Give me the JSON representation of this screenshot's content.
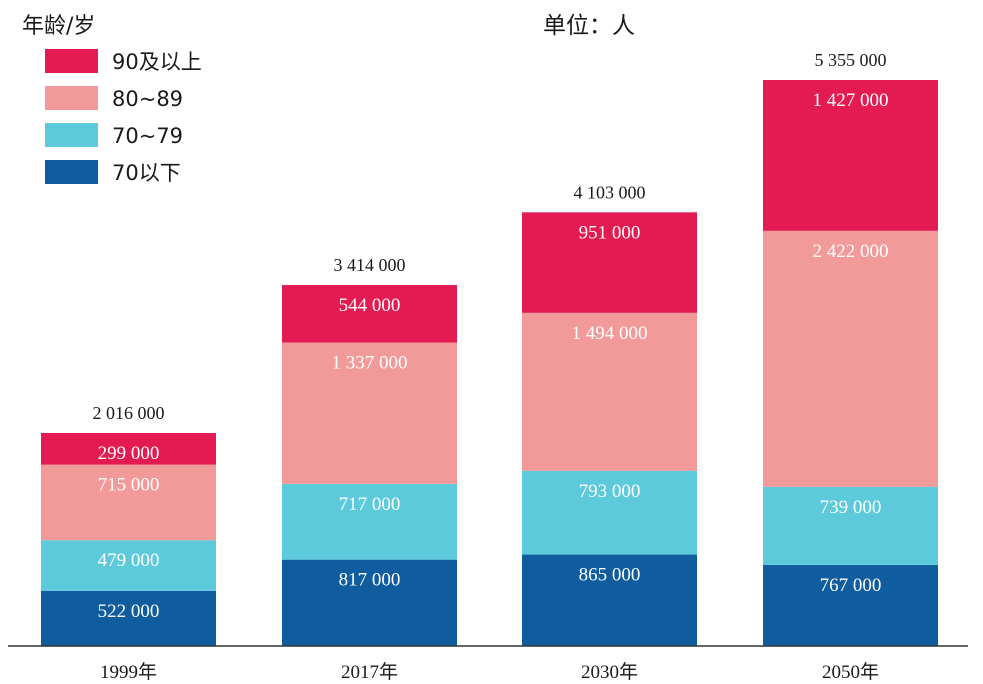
{
  "chart_data": {
    "type": "bar",
    "stacked": true,
    "ylabel": "年龄/岁",
    "unit": "单位：人",
    "categories": [
      "1999年",
      "2017年",
      "2030年",
      "2050年"
    ],
    "series": [
      {
        "name": "70以下",
        "color": "#0f5c9e",
        "values": [
          522000,
          817000,
          865000,
          767000
        ],
        "labels": [
          "522 000",
          "817 000",
          "865 000",
          "767 000"
        ]
      },
      {
        "name": "70~79",
        "color": "#5ccadb",
        "values": [
          479000,
          717000,
          793000,
          739000
        ],
        "labels": [
          "479 000",
          "717 000",
          "793 000",
          "739 000"
        ]
      },
      {
        "name": "80~89",
        "color": "#f29a9a",
        "values": [
          715000,
          1337000,
          1494000,
          2422000
        ],
        "labels": [
          "715 000",
          "1 337 000",
          "1 494 000",
          "2 422 000"
        ]
      },
      {
        "name": "90及以上",
        "color": "#e31b52",
        "values": [
          299000,
          544000,
          951000,
          1427000
        ],
        "labels": [
          "299 000",
          "544 000",
          "951 000",
          "1 427 000"
        ]
      }
    ],
    "totals": [
      2016000,
      3414000,
      4103000,
      5355000
    ],
    "total_labels": [
      "2 016 000",
      "3 414 000",
      "4 103 000",
      "5 355 000"
    ],
    "legend": "top-left",
    "grid": false
  }
}
